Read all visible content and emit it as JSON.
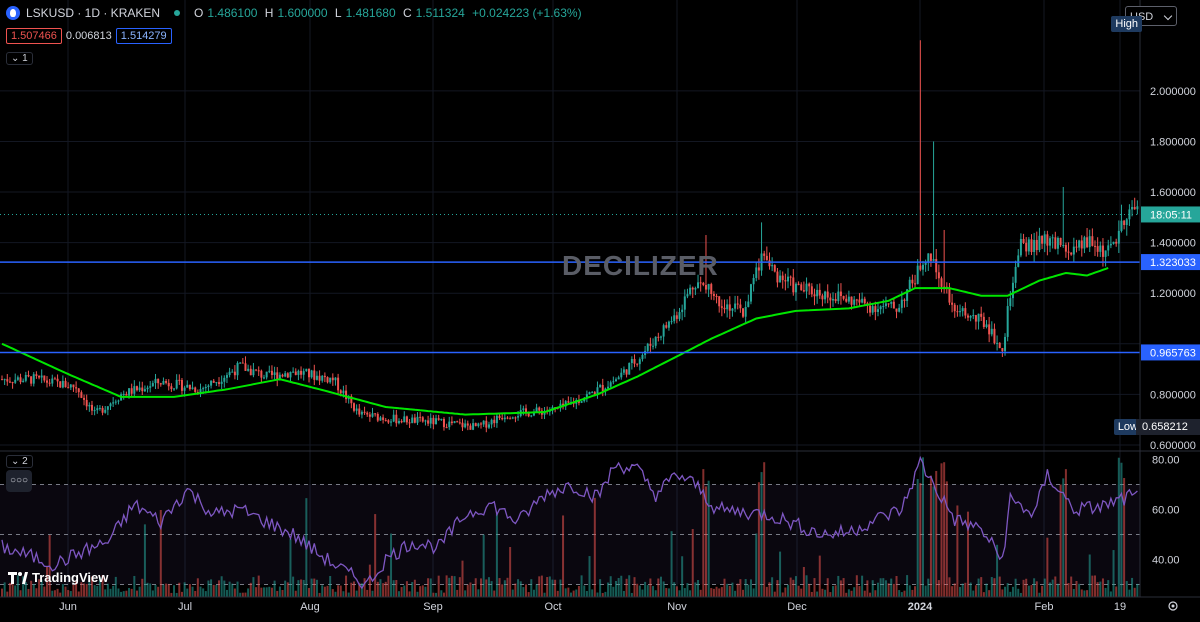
{
  "header": {
    "symbol": "LSKUSD · 1D · KRAKEN",
    "ohlc": {
      "o_label": "O",
      "o": "1.486100",
      "h_label": "H",
      "h": "1.600000",
      "l_label": "L",
      "l": "1.481680",
      "c_label": "C",
      "c": "1.511324",
      "change": "+0.024223 (+1.63%)"
    },
    "bid": "1.507466",
    "spread": "0.006813",
    "ask": "1.514279",
    "legend1": "1",
    "legend2": "2"
  },
  "currency": "USD",
  "watermark": "DECILIZER",
  "logo_text": "TradingView",
  "more_label": "○○○",
  "colors": {
    "up": "#26a69a",
    "down": "#ef5350",
    "ma": "#00e600",
    "hline": "#2962ff",
    "rsi": "#7e57c2",
    "bg": "#000000"
  },
  "chart_data": [
    {
      "type": "candlestick",
      "yaxis_ticks": [
        "2.000000",
        "1.800000",
        "1.600000",
        "1.400000",
        "1.200000",
        "1.000000",
        "0.800000",
        "0.600000"
      ],
      "ylim": [
        0.58,
        2.3
      ],
      "x_ticks": [
        "Jun",
        "Jul",
        "Aug",
        "Sep",
        "Oct",
        "Nov",
        "Dec",
        "2024",
        "Feb",
        "19"
      ],
      "high_label": "High",
      "low_label": "Low",
      "low_value": "0.658212",
      "horizontal_lines": [
        {
          "value": 1.323033,
          "label": "1.323033"
        },
        {
          "value": 0.965763,
          "label": "0.965763"
        }
      ],
      "last_price": {
        "value": 1.511324,
        "label": "18:05:11"
      },
      "close_anchors": [
        [
          0,
          0.86
        ],
        [
          12,
          0.86
        ],
        [
          28,
          0.83
        ],
        [
          35,
          0.72
        ],
        [
          45,
          0.8
        ],
        [
          60,
          0.85
        ],
        [
          75,
          0.82
        ],
        [
          90,
          0.91
        ],
        [
          100,
          0.87
        ],
        [
          110,
          0.89
        ],
        [
          125,
          0.86
        ],
        [
          135,
          0.72
        ],
        [
          150,
          0.7
        ],
        [
          165,
          0.69
        ],
        [
          180,
          0.67
        ],
        [
          190,
          0.72
        ],
        [
          200,
          0.73
        ],
        [
          210,
          0.74
        ],
        [
          222,
          0.8
        ],
        [
          232,
          0.86
        ],
        [
          242,
          0.96
        ],
        [
          255,
          1.12
        ],
        [
          262,
          1.25
        ],
        [
          270,
          1.18
        ],
        [
          280,
          1.12
        ],
        [
          287,
          1.35
        ],
        [
          292,
          1.28
        ],
        [
          300,
          1.22
        ],
        [
          310,
          1.2
        ],
        [
          318,
          1.18
        ],
        [
          328,
          1.15
        ],
        [
          338,
          1.14
        ],
        [
          345,
          1.26
        ],
        [
          350,
          1.38
        ],
        [
          355,
          1.24
        ],
        [
          362,
          1.12
        ],
        [
          372,
          1.08
        ],
        [
          378,
          0.97
        ],
        [
          381,
          1.2
        ],
        [
          385,
          1.38
        ],
        [
          395,
          1.4
        ],
        [
          405,
          1.36
        ],
        [
          410,
          1.4
        ],
        [
          418,
          1.36
        ],
        [
          426,
          1.51
        ]
      ],
      "spikes": [
        [
          347,
          2.2
        ],
        [
          352,
          1.8
        ],
        [
          356,
          1.45
        ],
        [
          287,
          1.48
        ],
        [
          266,
          1.43
        ],
        [
          401,
          1.62
        ],
        [
          423,
          1.55
        ]
      ],
      "ma_anchors": [
        [
          0,
          1.0
        ],
        [
          25,
          0.88
        ],
        [
          45,
          0.79
        ],
        [
          65,
          0.79
        ],
        [
          85,
          0.82
        ],
        [
          105,
          0.86
        ],
        [
          120,
          0.82
        ],
        [
          145,
          0.75
        ],
        [
          175,
          0.72
        ],
        [
          205,
          0.73
        ],
        [
          225,
          0.8
        ],
        [
          240,
          0.87
        ],
        [
          255,
          0.95
        ],
        [
          268,
          1.02
        ],
        [
          285,
          1.1
        ],
        [
          300,
          1.13
        ],
        [
          320,
          1.14
        ],
        [
          335,
          1.17
        ],
        [
          345,
          1.22
        ],
        [
          358,
          1.22
        ],
        [
          370,
          1.19
        ],
        [
          380,
          1.19
        ],
        [
          392,
          1.25
        ],
        [
          402,
          1.28
        ],
        [
          410,
          1.27
        ],
        [
          418,
          1.3
        ]
      ]
    },
    {
      "type": "rsi",
      "yaxis_ticks": [
        "80.00",
        "60.00",
        "40.00"
      ],
      "ylim": [
        25,
        83
      ],
      "band": [
        30,
        70
      ],
      "mid": 50,
      "rsi_anchors": [
        [
          0,
          45
        ],
        [
          20,
          38
        ],
        [
          30,
          43
        ],
        [
          40,
          47
        ],
        [
          50,
          62
        ],
        [
          60,
          55
        ],
        [
          70,
          68
        ],
        [
          80,
          58
        ],
        [
          90,
          60
        ],
        [
          100,
          55
        ],
        [
          110,
          50
        ],
        [
          120,
          42
        ],
        [
          130,
          35
        ],
        [
          138,
          30
        ],
        [
          145,
          40
        ],
        [
          155,
          47
        ],
        [
          165,
          45
        ],
        [
          175,
          58
        ],
        [
          185,
          62
        ],
        [
          195,
          55
        ],
        [
          205,
          66
        ],
        [
          215,
          70
        ],
        [
          225,
          65
        ],
        [
          232,
          78
        ],
        [
          240,
          76
        ],
        [
          247,
          66
        ],
        [
          255,
          74
        ],
        [
          262,
          70
        ],
        [
          270,
          60
        ],
        [
          280,
          59
        ],
        [
          290,
          58
        ],
        [
          300,
          54
        ],
        [
          310,
          50
        ],
        [
          320,
          51
        ],
        [
          330,
          56
        ],
        [
          340,
          60
        ],
        [
          347,
          79
        ],
        [
          352,
          70
        ],
        [
          360,
          56
        ],
        [
          370,
          52
        ],
        [
          378,
          40
        ],
        [
          381,
          64
        ],
        [
          390,
          58
        ],
        [
          395,
          74
        ],
        [
          405,
          60
        ],
        [
          415,
          61
        ],
        [
          426,
          65
        ]
      ]
    }
  ]
}
